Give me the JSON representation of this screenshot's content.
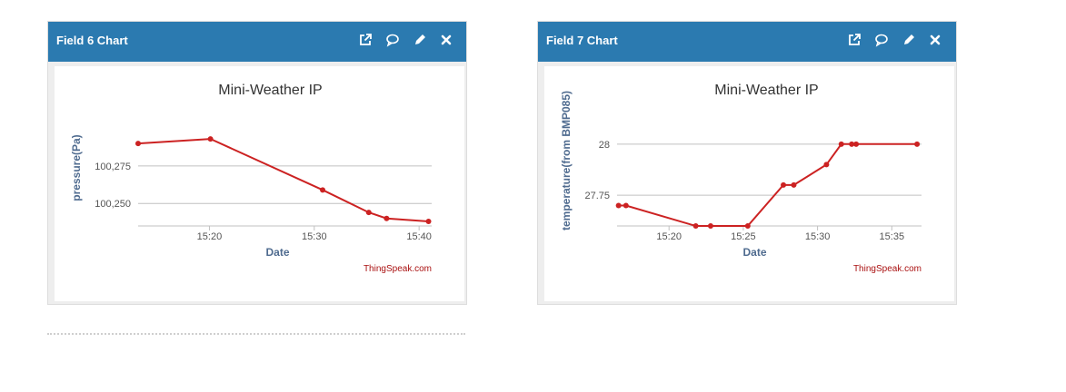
{
  "widgets": [
    {
      "title": "Field 6 Chart",
      "icons": [
        "external-link-icon",
        "comment-icon",
        "pencil-icon",
        "close-icon"
      ]
    },
    {
      "title": "Field 7 Chart",
      "icons": [
        "external-link-icon",
        "comment-icon",
        "pencil-icon",
        "close-icon"
      ]
    }
  ],
  "colors": {
    "header": "#2b7ab0",
    "series_line": "#cc2222",
    "credit": "#aa1111",
    "axis_label": "#4f6b8f"
  },
  "chart_data": [
    {
      "type": "line",
      "title": "Mini-Weather IP",
      "xlabel": "Date",
      "ylabel": "pressure(Pa)",
      "credit": "ThingSpeak.com",
      "grid": true,
      "x_ticks": [
        "15:20",
        "15:30",
        "15:40"
      ],
      "y_ticks": [
        "100,275",
        "100,250"
      ],
      "x_tick_minutes": [
        20,
        30,
        40
      ],
      "y_tick_values": [
        100275,
        100250
      ],
      "xlim_minutes": [
        13.2,
        41.2
      ],
      "ylim": [
        100235,
        100310
      ],
      "x_minutes": [
        13.2,
        20.1,
        30.8,
        35.2,
        36.9,
        40.9
      ],
      "values": [
        100290,
        100293,
        100259,
        100244,
        100240,
        100238
      ]
    },
    {
      "type": "line",
      "title": "Mini-Weather IP",
      "xlabel": "Date",
      "ylabel": "temperature(from BMP085)",
      "credit": "ThingSpeak.com",
      "grid": true,
      "x_ticks": [
        "15:20",
        "15:25",
        "15:30",
        "15:35"
      ],
      "y_ticks": [
        "28",
        "27.75"
      ],
      "x_tick_minutes": [
        20,
        25,
        30,
        35
      ],
      "y_tick_values": [
        28,
        27.75
      ],
      "xlim_minutes": [
        16.5,
        37.0
      ],
      "ylim": [
        27.6,
        28.15
      ],
      "x_minutes": [
        16.6,
        17.1,
        21.8,
        22.8,
        25.3,
        27.7,
        28.4,
        30.6,
        31.6,
        32.3,
        32.6,
        36.7
      ],
      "values": [
        27.7,
        27.7,
        27.6,
        27.6,
        27.6,
        27.8,
        27.8,
        27.9,
        28.0,
        28.0,
        28.0,
        28.0
      ]
    }
  ]
}
